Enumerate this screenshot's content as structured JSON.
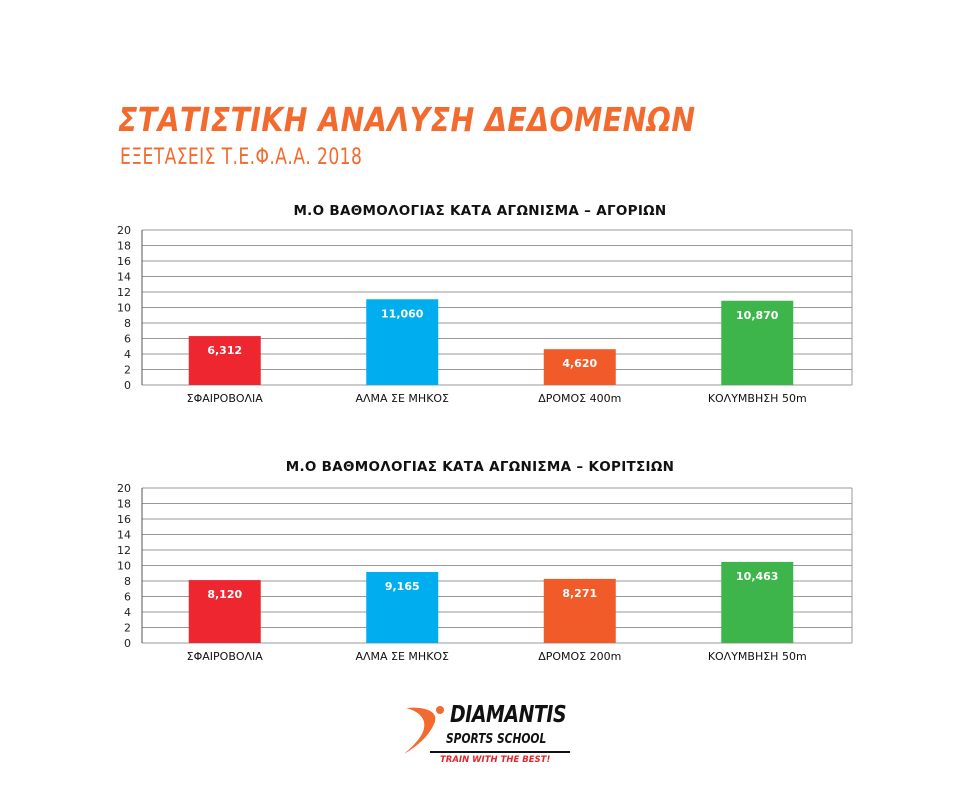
{
  "header": {
    "title": "ΣΤΑΤΙΣΤΙΚΗ ΑΝΑΛΥΣΗ ΔΕΔΟΜΕΝΩΝ",
    "subtitle": "ΕΞΕΤΑΣΕΙΣ Τ.Ε.Φ.Α.Α. 2018"
  },
  "colors": {
    "title_orange": "#f26a2e",
    "bar_red": "#ed2630",
    "bar_blue": "#00aeef",
    "bar_orange": "#f15a29",
    "bar_green": "#3db54a",
    "grid": "#999999"
  },
  "chart_data": [
    {
      "type": "bar",
      "title": "Μ.Ο ΒΑΘΜΟΛΟΓΙΑΣ ΚΑΤΑ ΑΓΩΝΙΣΜΑ – ΑΓΟΡΙΩΝ",
      "categories": [
        "ΣΦΑΙΡΟΒΟΛΙΑ",
        "ΑΛΜΑ ΣΕ ΜΗΚΟΣ",
        "ΔΡΟΜΟΣ 400m",
        "ΚΟΛΥΜΒΗΣΗ 50m"
      ],
      "values": [
        6.312,
        11.06,
        4.62,
        10.87
      ],
      "data_labels": [
        "6,312",
        "11,060",
        "4,620",
        "10,870"
      ],
      "bar_colors": [
        "#ed2630",
        "#00aeef",
        "#f15a29",
        "#3db54a"
      ],
      "ylim": [
        0,
        20
      ],
      "yticks": [
        0,
        2,
        4,
        6,
        8,
        10,
        12,
        14,
        16,
        18,
        20
      ],
      "grid": true,
      "legend": "none"
    },
    {
      "type": "bar",
      "title": "Μ.Ο ΒΑΘΜΟΛΟΓΙΑΣ ΚΑΤΑ ΑΓΩΝΙΣΜΑ – ΚΟΡΙΤΣΙΩΝ",
      "categories": [
        "ΣΦΑΙΡΟΒΟΛΙΑ",
        "ΑΛΜΑ ΣΕ ΜΗΚΟΣ",
        "ΔΡΟΜΟΣ 200m",
        "ΚΟΛΥΜΒΗΣΗ 50m"
      ],
      "values": [
        8.12,
        9.165,
        8.271,
        10.463
      ],
      "data_labels": [
        "8,120",
        "9,165",
        "8,271",
        "10,463"
      ],
      "bar_colors": [
        "#ed2630",
        "#00aeef",
        "#f15a29",
        "#3db54a"
      ],
      "ylim": [
        0,
        20
      ],
      "yticks": [
        0,
        2,
        4,
        6,
        8,
        10,
        12,
        14,
        16,
        18,
        20
      ],
      "grid": true,
      "legend": "none"
    }
  ],
  "logo": {
    "brand": "DIAMANTIS",
    "sub": "SPORTS SCHOOL",
    "tagline": "TRAIN WITH THE BEST!"
  }
}
